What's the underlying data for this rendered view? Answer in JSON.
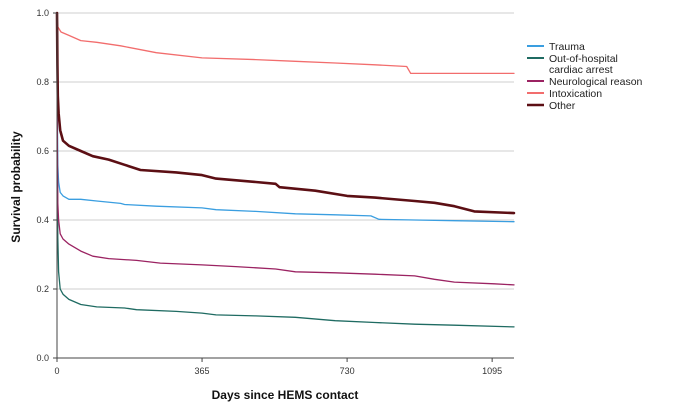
{
  "chart_data": {
    "type": "line",
    "title": "",
    "xlabel": "Days since HEMS contact",
    "ylabel": "Survival probability",
    "xlim": [
      0,
      1150
    ],
    "ylim": [
      0,
      1.0
    ],
    "xticks": [
      0,
      365,
      730,
      1095
    ],
    "yticks": [
      0.0,
      0.2,
      0.4,
      0.6,
      0.8,
      1.0
    ],
    "ytick_labels": [
      "0.0",
      "0.2",
      "0.4",
      "0.6",
      "0.8",
      "1.0"
    ],
    "grid": "horizontal",
    "legend_position": "right",
    "series": [
      {
        "name": "Trauma",
        "color": "#3a9ee0",
        "stroke": 1.3,
        "points": [
          [
            0,
            1.0
          ],
          [
            1,
            0.7
          ],
          [
            2,
            0.56
          ],
          [
            4,
            0.51
          ],
          [
            8,
            0.48
          ],
          [
            15,
            0.47
          ],
          [
            30,
            0.46
          ],
          [
            60,
            0.46
          ],
          [
            100,
            0.455
          ],
          [
            160,
            0.448
          ],
          [
            170,
            0.445
          ],
          [
            250,
            0.44
          ],
          [
            365,
            0.435
          ],
          [
            400,
            0.43
          ],
          [
            500,
            0.425
          ],
          [
            600,
            0.418
          ],
          [
            700,
            0.415
          ],
          [
            790,
            0.412
          ],
          [
            810,
            0.402
          ],
          [
            900,
            0.4
          ],
          [
            1000,
            0.398
          ],
          [
            1150,
            0.395
          ]
        ]
      },
      {
        "name": "Out-of-hospital cardiac arrest",
        "color": "#1f6b62",
        "stroke": 1.3,
        "points": [
          [
            0,
            1.0
          ],
          [
            1,
            0.55
          ],
          [
            2,
            0.35
          ],
          [
            4,
            0.25
          ],
          [
            8,
            0.2
          ],
          [
            15,
            0.185
          ],
          [
            30,
            0.17
          ],
          [
            60,
            0.155
          ],
          [
            100,
            0.148
          ],
          [
            170,
            0.145
          ],
          [
            200,
            0.14
          ],
          [
            300,
            0.135
          ],
          [
            365,
            0.13
          ],
          [
            400,
            0.125
          ],
          [
            500,
            0.122
          ],
          [
            600,
            0.118
          ],
          [
            700,
            0.108
          ],
          [
            800,
            0.103
          ],
          [
            900,
            0.098
          ],
          [
            1000,
            0.095
          ],
          [
            1150,
            0.09
          ]
        ]
      },
      {
        "name": "Neurological reason",
        "color": "#9b2362",
        "stroke": 1.3,
        "points": [
          [
            0,
            1.0
          ],
          [
            1,
            0.6
          ],
          [
            2,
            0.45
          ],
          [
            4,
            0.4
          ],
          [
            8,
            0.36
          ],
          [
            15,
            0.345
          ],
          [
            30,
            0.33
          ],
          [
            60,
            0.31
          ],
          [
            90,
            0.295
          ],
          [
            130,
            0.288
          ],
          [
            200,
            0.283
          ],
          [
            260,
            0.275
          ],
          [
            365,
            0.27
          ],
          [
            450,
            0.265
          ],
          [
            550,
            0.258
          ],
          [
            600,
            0.25
          ],
          [
            700,
            0.247
          ],
          [
            800,
            0.243
          ],
          [
            900,
            0.238
          ],
          [
            950,
            0.228
          ],
          [
            1000,
            0.22
          ],
          [
            1100,
            0.215
          ],
          [
            1150,
            0.212
          ]
        ]
      },
      {
        "name": "Intoxication",
        "color": "#f26d6d",
        "stroke": 1.3,
        "points": [
          [
            0,
            1.0
          ],
          [
            2,
            0.96
          ],
          [
            10,
            0.945
          ],
          [
            30,
            0.935
          ],
          [
            60,
            0.92
          ],
          [
            100,
            0.915
          ],
          [
            160,
            0.905
          ],
          [
            250,
            0.885
          ],
          [
            365,
            0.87
          ],
          [
            500,
            0.865
          ],
          [
            600,
            0.86
          ],
          [
            700,
            0.855
          ],
          [
            800,
            0.85
          ],
          [
            880,
            0.845
          ],
          [
            890,
            0.825
          ],
          [
            1000,
            0.825
          ],
          [
            1150,
            0.825
          ]
        ]
      },
      {
        "name": "Other",
        "color": "#5c0f14",
        "stroke": 2.6,
        "points": [
          [
            0,
            1.0
          ],
          [
            1,
            0.85
          ],
          [
            2,
            0.76
          ],
          [
            4,
            0.71
          ],
          [
            8,
            0.66
          ],
          [
            15,
            0.63
          ],
          [
            30,
            0.615
          ],
          [
            60,
            0.6
          ],
          [
            90,
            0.585
          ],
          [
            130,
            0.575
          ],
          [
            170,
            0.56
          ],
          [
            210,
            0.545
          ],
          [
            300,
            0.538
          ],
          [
            365,
            0.53
          ],
          [
            400,
            0.52
          ],
          [
            500,
            0.51
          ],
          [
            550,
            0.505
          ],
          [
            560,
            0.495
          ],
          [
            650,
            0.485
          ],
          [
            730,
            0.47
          ],
          [
            800,
            0.465
          ],
          [
            900,
            0.455
          ],
          [
            950,
            0.45
          ],
          [
            1000,
            0.44
          ],
          [
            1050,
            0.425
          ],
          [
            1150,
            0.42
          ]
        ]
      }
    ]
  }
}
